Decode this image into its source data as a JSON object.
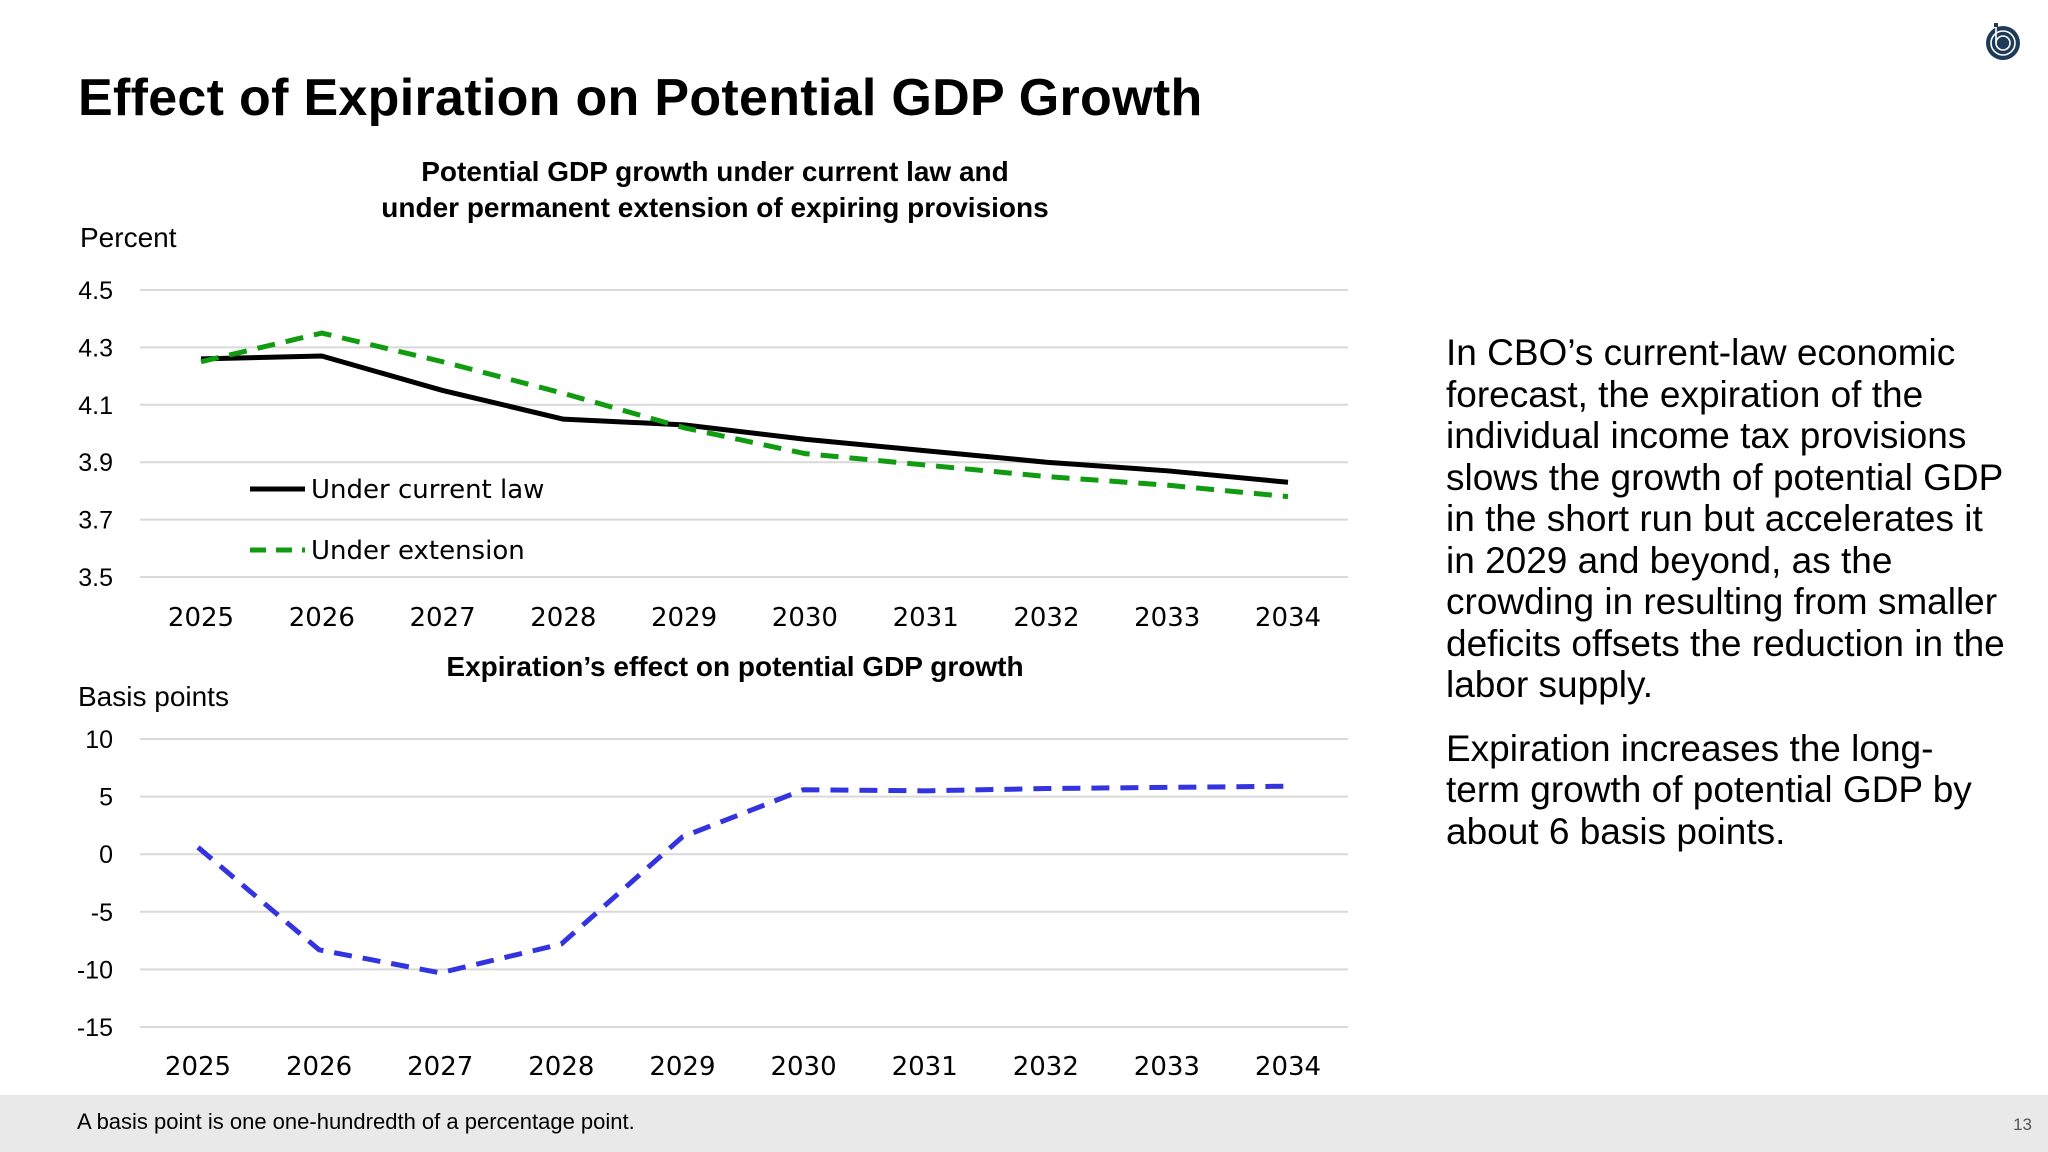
{
  "title": "Effect of Expiration on Potential GDP Growth",
  "logo": {
    "icon": "cbo-logo-icon",
    "color": "#1d3b57"
  },
  "side_text": [
    "In CBO’s current-law economic forecast, the expiration of the individual income tax provisions slows the growth of potential GDP in the short run but accelerates it in 2029 and beyond, as the crowding in resulting from smaller deficits offsets the reduction in the labor supply.",
    "Expiration increases the long-term growth of potential GDP by about 6 basis points."
  ],
  "footer": {
    "note": "A basis point is one one-hundredth of a percentage point.",
    "page": "13"
  },
  "chart_data": [
    {
      "type": "line",
      "title_lines": [
        "Potential GDP growth under current law and",
        "under permanent extension of expiring provisions"
      ],
      "ylabel": "Percent",
      "xlabel": "",
      "categories": [
        "2025",
        "2026",
        "2027",
        "2028",
        "2029",
        "2030",
        "2031",
        "2032",
        "2033",
        "2034"
      ],
      "ylim": [
        3.5,
        4.5
      ],
      "yticks": [
        "4.5",
        "4.3",
        "4.1",
        "3.9",
        "3.7",
        "3.5"
      ],
      "grid": true,
      "legend": "lower-left",
      "series": [
        {
          "name": "Under current law",
          "color": "#000000",
          "dash": false,
          "values": [
            4.26,
            4.27,
            4.15,
            4.05,
            4.03,
            3.98,
            3.94,
            3.9,
            3.87,
            3.83
          ]
        },
        {
          "name": "Under extension",
          "color": "#119b11",
          "dash": true,
          "values": [
            4.25,
            4.35,
            4.25,
            4.14,
            4.02,
            3.93,
            3.89,
            3.85,
            3.82,
            3.78
          ]
        }
      ]
    },
    {
      "type": "line",
      "title_lines": [
        "Expiration’s effect on potential GDP growth"
      ],
      "ylabel": "Basis points",
      "xlabel": "",
      "categories": [
        "2025",
        "2026",
        "2027",
        "2028",
        "2029",
        "2030",
        "2031",
        "2032",
        "2033",
        "2034"
      ],
      "ylim": [
        -15,
        10
      ],
      "yticks": [
        "10",
        "5",
        "0",
        "-5",
        "-10",
        "-15"
      ],
      "grid": true,
      "series": [
        {
          "color": "#3333e0",
          "dash": true,
          "values": [
            0.6,
            -8.3,
            -10.3,
            -7.8,
            1.5,
            5.6,
            5.5,
            5.7,
            5.8,
            5.9
          ]
        }
      ]
    }
  ]
}
